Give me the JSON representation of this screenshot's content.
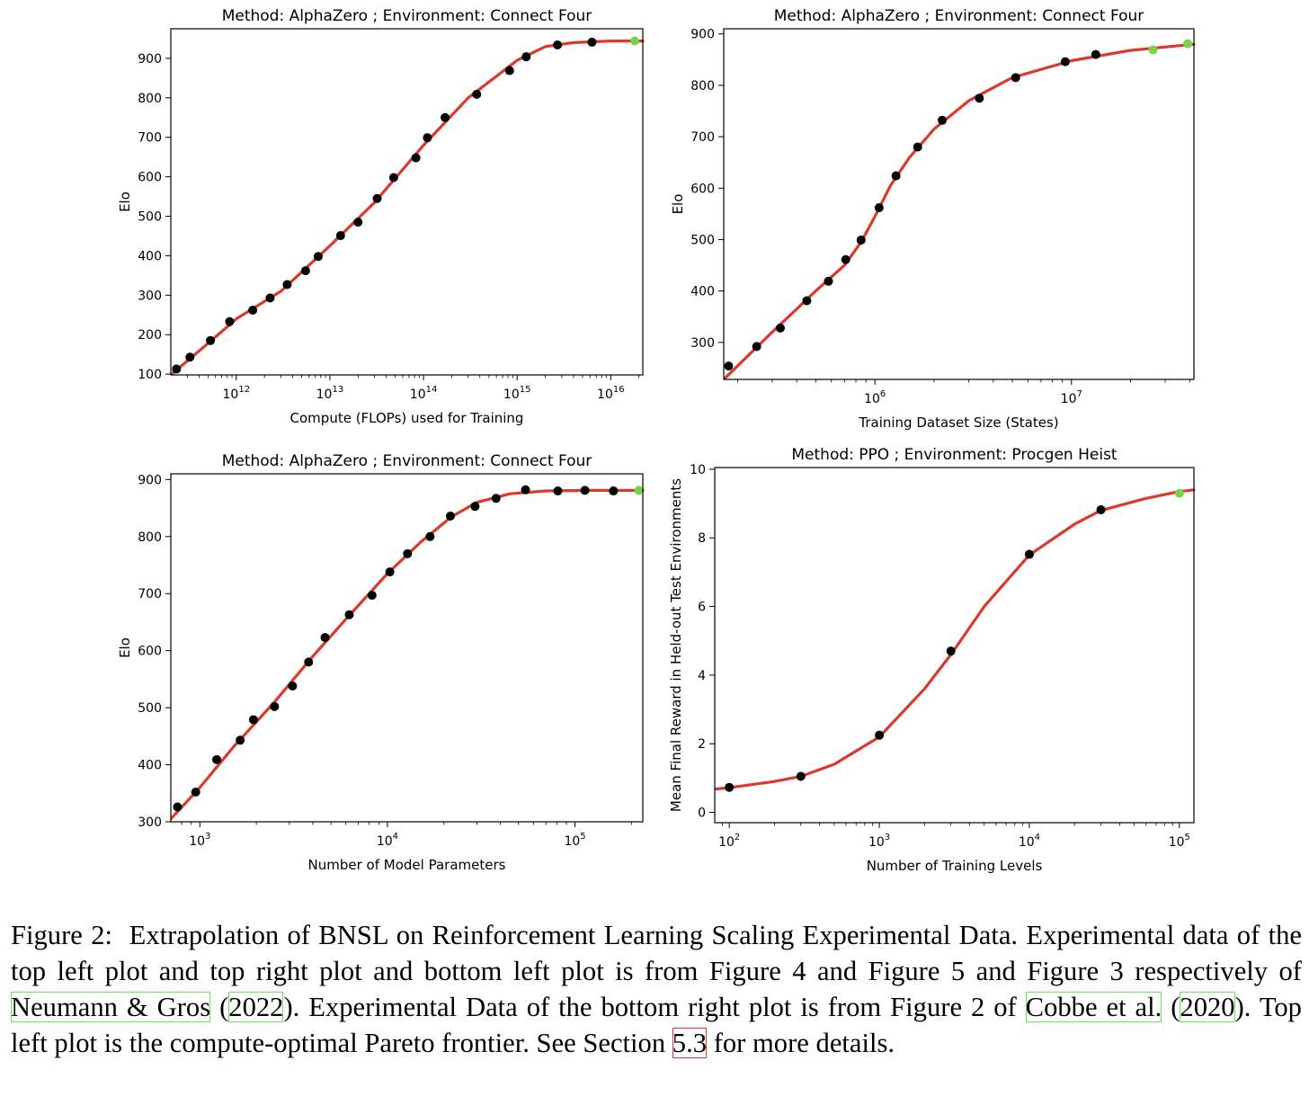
{
  "chart_data": [
    {
      "type": "scatter",
      "title": "Method: AlphaZero ; Environment: Connect Four",
      "xlabel": "Compute (FLOPs) used for Training",
      "ylabel": "Elo",
      "xscale": "log",
      "xlim": [
        200000000000.0,
        2.2e+16
      ],
      "ylim": [
        98,
        975
      ],
      "xticks": [
        1000000000000.0,
        10000000000000.0,
        100000000000000.0,
        1000000000000000.0,
        1e+16
      ],
      "xtick_labels": [
        "10^12",
        "10^13",
        "10^14",
        "10^15",
        "10^16"
      ],
      "yticks": [
        100,
        200,
        300,
        400,
        500,
        600,
        700,
        800,
        900
      ],
      "series": [
        {
          "marker": "black-dot",
          "x": [
            230000000000.0,
            320000000000.0,
            530000000000.0,
            850000000000.0,
            1500000000000.0,
            2300000000000.0,
            3500000000000.0,
            5500000000000.0,
            7500000000000.0,
            13000000000000.0,
            20000000000000.0,
            32000000000000.0,
            48000000000000.0,
            83000000000000.0,
            110000000000000.0,
            170000000000000.0,
            370000000000000.0,
            830000000000000.0,
            1250000000000000.0,
            2700000000000000.0,
            6300000000000000.0
          ],
          "y": [
            113,
            143,
            185,
            233,
            262,
            293,
            327,
            362,
            398,
            451,
            485,
            545,
            598,
            648,
            699,
            750,
            809,
            869,
            904,
            934,
            941
          ]
        },
        {
          "marker": "green-dot",
          "x": [
            1.8e+16
          ],
          "y": [
            944
          ]
        }
      ],
      "fit": {
        "color": "#d93a2c",
        "x": [
          200000000000.0,
          500000000000.0,
          1000000000000.0,
          3000000000000.0,
          10000000000000.0,
          30000000000000.0,
          100000000000000.0,
          300000000000000.0,
          1000000000000000.0,
          2000000000000000.0,
          4000000000000000.0,
          1e+16,
          2.2e+16
        ],
        "y": [
          98,
          178,
          240,
          310,
          425,
          535,
          680,
          800,
          895,
          930,
          940,
          944,
          944
        ]
      }
    },
    {
      "type": "scatter",
      "title": "Method: AlphaZero ; Environment: Connect Four",
      "xlabel": "Training Dataset Size (States)",
      "ylabel": "Elo",
      "xscale": "log",
      "xlim": [
        170000.0,
        42000000.0
      ],
      "ylim": [
        228,
        910
      ],
      "xticks": [
        1000000.0,
        10000000.0
      ],
      "xtick_labels": [
        "10^6",
        "10^7"
      ],
      "yticks": [
        300,
        400,
        500,
        600,
        700,
        800,
        900
      ],
      "series": [
        {
          "marker": "black-dot",
          "x": [
            180000.0,
            250000.0,
            330000.0,
            450000.0,
            580000.0,
            710000.0,
            850000.0,
            1050000.0,
            1280000.0,
            1650000.0,
            2200000.0,
            3400000.0,
            5200000.0,
            9300000.0,
            13300000.0
          ],
          "y": [
            254,
            292,
            328,
            381,
            419,
            461,
            499,
            562,
            624,
            680,
            732,
            775,
            815,
            846,
            860
          ]
        },
        {
          "marker": "green-dot",
          "x": [
            26000000.0,
            39000000.0
          ],
          "y": [
            869,
            881
          ]
        }
      ],
      "fit": {
        "color": "#d93a2c",
        "x": [
          170000.0,
          300000.0,
          500000.0,
          700000.0,
          850000.0,
          1000000.0,
          1200000.0,
          1500000.0,
          2000000.0,
          3000000.0,
          5000000.0,
          10000000.0,
          20000000.0,
          42000000.0
        ],
        "y": [
          228,
          320,
          400,
          450,
          495,
          545,
          605,
          660,
          715,
          770,
          815,
          848,
          868,
          880
        ]
      }
    },
    {
      "type": "scatter",
      "title": "Method: AlphaZero ; Environment: Connect Four",
      "xlabel": "Number of Model Parameters",
      "ylabel": "Elo",
      "xscale": "log",
      "xlim": [
        700,
        230000.0
      ],
      "ylim": [
        300,
        910
      ],
      "xticks": [
        1000.0,
        10000.0,
        100000.0
      ],
      "xtick_labels": [
        "10^3",
        "10^4",
        "10^5"
      ],
      "yticks": [
        300,
        400,
        500,
        600,
        700,
        800,
        900
      ],
      "series": [
        {
          "marker": "black-dot",
          "x": [
            760,
            950,
            1230,
            1640,
            1930,
            2500,
            3120,
            3800,
            4650,
            6260,
            8280,
            10300,
            12800,
            16880,
            21670,
            29320,
            37960,
            54480,
            81050,
            113000,
            160400
          ],
          "y": [
            326,
            352,
            409,
            443,
            479,
            502,
            538,
            580,
            623,
            663,
            697,
            738,
            770,
            800,
            836,
            853,
            867,
            882,
            880,
            881,
            880
          ]
        },
        {
          "marker": "green-dot",
          "x": [
            219000
          ],
          "y": [
            881
          ]
        }
      ],
      "fit": {
        "color": "#d93a2c",
        "x": [
          700,
          1000,
          1500,
          2500,
          4000,
          6000,
          10000,
          15000,
          22000,
          30000,
          45000,
          70000,
          120000,
          230000
        ],
        "y": [
          305,
          360,
          430,
          510,
          590,
          655,
          735,
          790,
          835,
          860,
          875,
          880,
          881,
          881
        ]
      }
    },
    {
      "type": "scatter",
      "title": "Method: PPO ; Environment: Procgen Heist",
      "xlabel": "Number of Training Levels",
      "ylabel": "Mean Final Reward in Held-out Test Environments",
      "xscale": "log",
      "xlim": [
        80,
        125000.0
      ],
      "ylim": [
        -0.3,
        10.05
      ],
      "xticks": [
        100,
        1000,
        10000,
        100000
      ],
      "xtick_labels": [
        "10^2",
        "10^3",
        "10^4",
        "10^5"
      ],
      "yticks": [
        0,
        2,
        4,
        6,
        8,
        10
      ],
      "series": [
        {
          "marker": "black-dot",
          "x": [
            100,
            300,
            1000,
            3000,
            10000,
            30000
          ],
          "y": [
            0.73,
            1.05,
            2.25,
            4.7,
            7.52,
            8.82
          ]
        },
        {
          "marker": "green-dot",
          "x": [
            100000
          ],
          "y": [
            9.3
          ]
        }
      ],
      "fit": {
        "color": "#d93a2c",
        "x": [
          80,
          100,
          200,
          300,
          500,
          1000,
          2000,
          3000,
          5000,
          10000,
          20000,
          30000,
          60000,
          100000,
          125000
        ],
        "y": [
          0.68,
          0.72,
          0.9,
          1.05,
          1.4,
          2.2,
          3.6,
          4.6,
          6.0,
          7.5,
          8.4,
          8.8,
          9.15,
          9.35,
          9.4
        ]
      }
    }
  ],
  "caption": {
    "figure_label": "Figure 2:",
    "p1": "Extrapolation of BNSL on Reinforcement Learning Scaling Experimental Data. Experimental data of the top left plot and top right plot and bottom left plot is from Figure 4 and Figure 5 and Figure 3 respectively of",
    "ref1_authors": "Neumann & Gros",
    "ref1_year": "2022",
    "p2": "Experimental Data of the bottom right plot is from Figure 2 of",
    "ref2_authors": "Cobbe et al.",
    "ref2_year": "2020",
    "p3": "Top left plot is the compute-optimal Pareto frontier. See Section",
    "section_ref": "5.3",
    "p4": "for more details."
  }
}
